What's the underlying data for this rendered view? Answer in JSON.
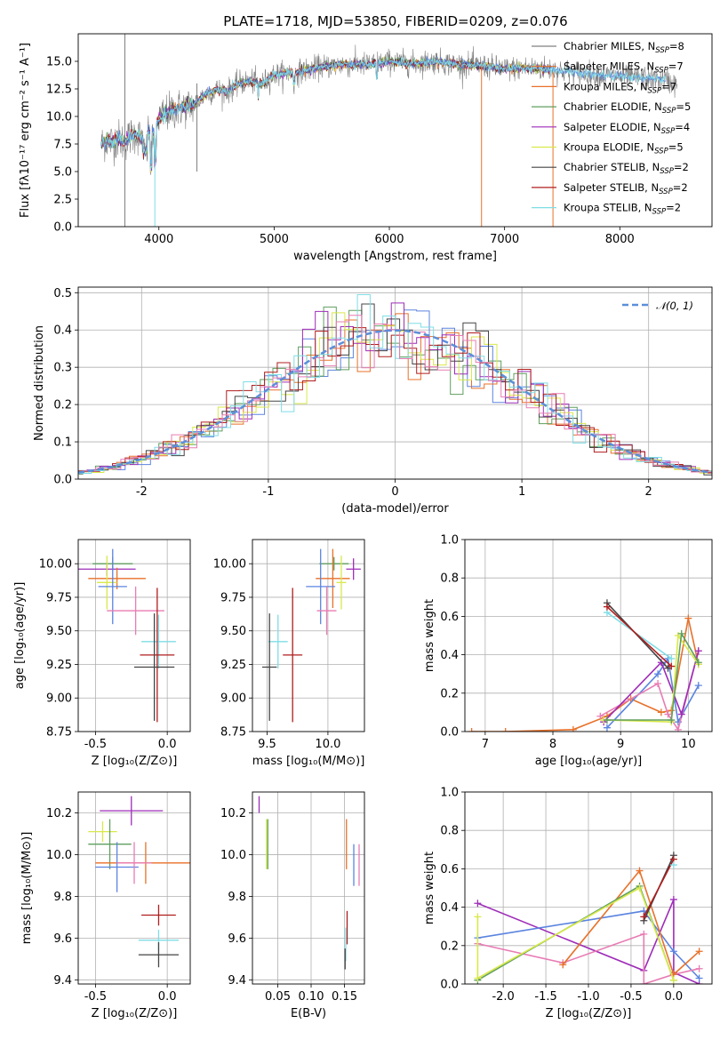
{
  "figure": {
    "title": "PLATE=1718, MJD=53850, FIBERID=0209, z=0.076"
  },
  "colors": {
    "chabrier_miles": "#5b84e0",
    "salpeter_miles": "#e8712a",
    "kroupa_miles": "#e8712a",
    "chabrier_elodie": "#5f9f5f",
    "salpeter_elodie": "#9e2cb8",
    "kroupa_elodie": "#d9e84a",
    "chabrier_stelib": "#444444",
    "salpeter_stelib": "#b01d1d",
    "kroupa_stelib": "#7fdde6",
    "pink": "#e87cb3",
    "normal": "#5b8fd9"
  },
  "legend_spectra": [
    {
      "label": "Chabrier MILES, N",
      "sub": "SSP",
      "tail": "=8",
      "color": "#808080"
    },
    {
      "label": "Salpeter MILES, N",
      "sub": "SSP",
      "tail": "=7",
      "color": "#e8712a"
    },
    {
      "label": "Kroupa MILES, N",
      "sub": "SSP",
      "tail": "=7",
      "color": "#e8712a"
    },
    {
      "label": "Chabrier ELODIE, N",
      "sub": "SSP",
      "tail": "=5",
      "color": "#5f9f5f"
    },
    {
      "label": "Salpeter ELODIE, N",
      "sub": "SSP",
      "tail": "=4",
      "color": "#9e2cb8"
    },
    {
      "label": "Kroupa ELODIE, N",
      "sub": "SSP",
      "tail": "=5",
      "color": "#d9e84a"
    },
    {
      "label": "Chabrier STELIB, N",
      "sub": "SSP",
      "tail": "=2",
      "color": "#444444"
    },
    {
      "label": "Salpeter STELIB, N",
      "sub": "SSP",
      "tail": "=2",
      "color": "#b01d1d"
    },
    {
      "label": "Kroupa STELIB, N",
      "sub": "SSP",
      "tail": "=2",
      "color": "#7fdde6"
    }
  ],
  "legend_hist": {
    "label": "𝒩(0, 1)"
  },
  "chart_data": [
    {
      "id": "spectrum",
      "type": "line",
      "xlabel": "wavelength [Angstrom, rest frame]",
      "ylabel": "Flux [fλ10⁻¹⁷ erg cm⁻² s⁻¹ A⁻¹]",
      "xlim": [
        3300,
        8800
      ],
      "ylim": [
        0,
        17.5
      ],
      "xticks": [
        4000,
        5000,
        6000,
        7000,
        8000
      ],
      "yticks": [
        0.0,
        2.5,
        5.0,
        7.5,
        10.0,
        12.5,
        15.0
      ],
      "continuum": {
        "x": [
          3500,
          3550,
          3600,
          3650,
          3700,
          3750,
          3800,
          3850,
          3900,
          3950,
          4000,
          4100,
          4200,
          4300,
          4400,
          4500,
          4600,
          4700,
          4800,
          4900,
          5000,
          5200,
          5400,
          5600,
          5800,
          6000,
          6200,
          6400,
          6600,
          6800,
          7000,
          7200,
          7400,
          7600,
          7800,
          8000,
          8200,
          8400,
          8500
        ],
        "y": [
          7.5,
          7.8,
          7.7,
          8.0,
          7.6,
          8.2,
          8.4,
          8.0,
          8.5,
          8.6,
          9.8,
          10.5,
          10.8,
          11.0,
          12.0,
          12.4,
          12.3,
          13.0,
          13.2,
          13.0,
          13.8,
          14.0,
          14.5,
          14.7,
          14.7,
          15.0,
          14.8,
          15.0,
          14.7,
          14.6,
          14.3,
          14.4,
          14.3,
          14.0,
          13.8,
          13.6,
          13.5,
          13.3,
          12.8
        ]
      }
    },
    {
      "id": "residuals",
      "type": "histogram",
      "xlabel": "(data-model)/error",
      "ylabel": "Normed distribution",
      "xlim": [
        -2.5,
        2.5
      ],
      "ylim": [
        0,
        0.515
      ],
      "xticks": [
        -2,
        -1,
        0,
        1,
        2
      ],
      "yticks": [
        0.0,
        0.1,
        0.2,
        0.3,
        0.4,
        0.5
      ]
    },
    {
      "id": "age_vs_Z",
      "type": "errorbar",
      "xlabel": "Z [log₁₀(Z/Z⊙)]",
      "ylabel": "age  [log₁₀(age/yr)]",
      "xlim": [
        -0.62,
        0.16
      ],
      "ylim": [
        8.75,
        10.18
      ],
      "xticks": [
        -0.5,
        0.0
      ],
      "yticks": [
        8.75,
        9.0,
        9.25,
        9.5,
        9.75,
        10.0
      ],
      "points": [
        {
          "x": -0.38,
          "xerr": 0.14,
          "y": 10.0,
          "yerr": 0.05,
          "color": "#5f9f5f"
        },
        {
          "x": -0.42,
          "xerr": 0.2,
          "y": 9.96,
          "yerr": 0.05,
          "color": "#9e2cb8"
        },
        {
          "x": -0.35,
          "xerr": 0.2,
          "y": 9.89,
          "yerr": 0.08,
          "color": "#e8712a"
        },
        {
          "x": -0.42,
          "xerr": 0.07,
          "y": 9.86,
          "yerr": 0.2,
          "color": "#d9e84a"
        },
        {
          "x": -0.38,
          "xerr": 0.1,
          "y": 9.83,
          "yerr": 0.28,
          "color": "#5b84e0"
        },
        {
          "x": -0.22,
          "xerr": 0.2,
          "y": 9.65,
          "yerr": 0.18,
          "color": "#e87cb3"
        },
        {
          "x": -0.06,
          "xerr": 0.12,
          "y": 9.42,
          "yerr": 0.2,
          "color": "#7fdde6"
        },
        {
          "x": -0.07,
          "xerr": 0.12,
          "y": 9.32,
          "yerr": 0.5,
          "color": "#b01d1d"
        },
        {
          "x": -0.09,
          "xerr": 0.14,
          "y": 9.23,
          "yerr": 0.4,
          "color": "#444444"
        }
      ]
    },
    {
      "id": "age_vs_mass",
      "type": "errorbar",
      "xlabel": "mass [log₁₀(M/M⊙)]",
      "xlim": [
        9.38,
        10.3
      ],
      "ylim": [
        8.75,
        10.18
      ],
      "xticks": [
        9.5,
        10.0
      ],
      "yticks": [
        8.75,
        9.0,
        9.25,
        9.5,
        9.75,
        10.0
      ],
      "points": [
        {
          "x": 10.05,
          "xerr": 0.12,
          "y": 10.0,
          "yerr": 0.05,
          "color": "#5f9f5f"
        },
        {
          "x": 10.21,
          "xerr": 0.06,
          "y": 9.96,
          "yerr": 0.08,
          "color": "#9e2cb8"
        },
        {
          "x": 10.04,
          "xerr": 0.14,
          "y": 9.89,
          "yerr": 0.22,
          "color": "#e8712a"
        },
        {
          "x": 10.11,
          "xerr": 0.04,
          "y": 9.86,
          "yerr": 0.2,
          "color": "#d9e84a"
        },
        {
          "x": 9.94,
          "xerr": 0.12,
          "y": 9.83,
          "yerr": 0.28,
          "color": "#5b84e0"
        },
        {
          "x": 9.99,
          "xerr": 0.08,
          "y": 9.65,
          "yerr": 0.18,
          "color": "#e87cb3"
        },
        {
          "x": 9.59,
          "xerr": 0.08,
          "y": 9.42,
          "yerr": 0.2,
          "color": "#7fdde6"
        },
        {
          "x": 9.71,
          "xerr": 0.08,
          "y": 9.32,
          "yerr": 0.5,
          "color": "#b01d1d"
        },
        {
          "x": 9.52,
          "xerr": 0.06,
          "y": 9.23,
          "yerr": 0.4,
          "color": "#444444"
        }
      ]
    },
    {
      "id": "weight_vs_age",
      "type": "line",
      "xlabel": "age  [log₁₀(age/yr)]",
      "ylabel": "mass weight",
      "xlim": [
        6.7,
        10.35
      ],
      "ylim": [
        0,
        1.0
      ],
      "xticks": [
        7,
        8,
        9,
        10
      ],
      "yticks": [
        0.0,
        0.2,
        0.4,
        0.6,
        0.8,
        1.0
      ]
    },
    {
      "id": "mass_vs_Z",
      "type": "errorbar",
      "xlabel": "Z [log₁₀(Z/Z⊙)]",
      "ylabel": "mass [log₁₀(M/M⊙)]",
      "xlim": [
        -0.62,
        0.16
      ],
      "ylim": [
        9.38,
        10.3
      ],
      "xticks": [
        -0.5,
        0.0
      ],
      "yticks": [
        9.4,
        9.6,
        9.8,
        10.0,
        10.2
      ],
      "points": [
        {
          "x": -0.25,
          "xerr": 0.22,
          "y": 10.21,
          "yerr": 0.07,
          "color": "#9e2cb8"
        },
        {
          "x": -0.45,
          "xerr": 0.1,
          "y": 10.11,
          "yerr": 0.05,
          "color": "#d9e84a"
        },
        {
          "x": -0.4,
          "xerr": 0.15,
          "y": 10.05,
          "yerr": 0.12,
          "color": "#5f9f5f"
        },
        {
          "x": -0.15,
          "xerr": 0.35,
          "y": 9.96,
          "yerr": 0.1,
          "color": "#e8712a"
        },
        {
          "x": -0.35,
          "xerr": 0.15,
          "y": 9.94,
          "yerr": 0.12,
          "color": "#5b84e0"
        },
        {
          "x": -0.23,
          "xerr": 0.12,
          "y": 9.96,
          "yerr": 0.1,
          "color": "#e87cb3"
        },
        {
          "x": -0.06,
          "xerr": 0.12,
          "y": 9.71,
          "yerr": 0.05,
          "color": "#b01d1d"
        },
        {
          "x": -0.06,
          "xerr": 0.14,
          "y": 9.59,
          "yerr": 0.05,
          "color": "#7fdde6"
        },
        {
          "x": -0.06,
          "xerr": 0.14,
          "y": 9.52,
          "yerr": 0.06,
          "color": "#444444"
        }
      ]
    },
    {
      "id": "mass_vs_ebv",
      "type": "errorbar",
      "xlabel": "E(B-V)",
      "xlim": [
        0.012,
        0.18
      ],
      "ylim": [
        9.38,
        10.3
      ],
      "xticks": [
        0.05,
        0.1,
        0.15
      ],
      "yticks": [
        9.4,
        9.6,
        9.8,
        10.0,
        10.2
      ],
      "points": [
        {
          "x": 0.022,
          "y": 10.24,
          "yerr": 0.04,
          "color": "#9e2cb8"
        },
        {
          "x": 0.033,
          "y": 10.05,
          "yerr": 0.12,
          "color": "#d9e84a"
        },
        {
          "x": 0.035,
          "y": 10.05,
          "yerr": 0.12,
          "color": "#5f9f5f"
        },
        {
          "x": 0.153,
          "y": 10.05,
          "yerr": 0.12,
          "color": "#e8712a"
        },
        {
          "x": 0.164,
          "y": 9.95,
          "yerr": 0.1,
          "color": "#5b84e0"
        },
        {
          "x": 0.172,
          "y": 9.95,
          "yerr": 0.1,
          "color": "#e87cb3"
        },
        {
          "x": 0.154,
          "y": 9.65,
          "yerr": 0.08,
          "color": "#b01d1d"
        },
        {
          "x": 0.152,
          "y": 9.57,
          "yerr": 0.08,
          "color": "#7fdde6"
        },
        {
          "x": 0.151,
          "y": 9.5,
          "yerr": 0.05,
          "color": "#444444"
        }
      ]
    },
    {
      "id": "weight_vs_Z",
      "type": "line",
      "xlabel": "Z [log₁₀(Z/Z⊙)]",
      "ylabel": "mass weight",
      "xlim": [
        -2.45,
        0.45
      ],
      "ylim": [
        0,
        1.0
      ],
      "xticks": [
        -2.0,
        -1.5,
        -1.0,
        -0.5,
        0.0
      ],
      "yticks": [
        0.0,
        0.2,
        0.4,
        0.6,
        0.8,
        1.0
      ]
    }
  ]
}
